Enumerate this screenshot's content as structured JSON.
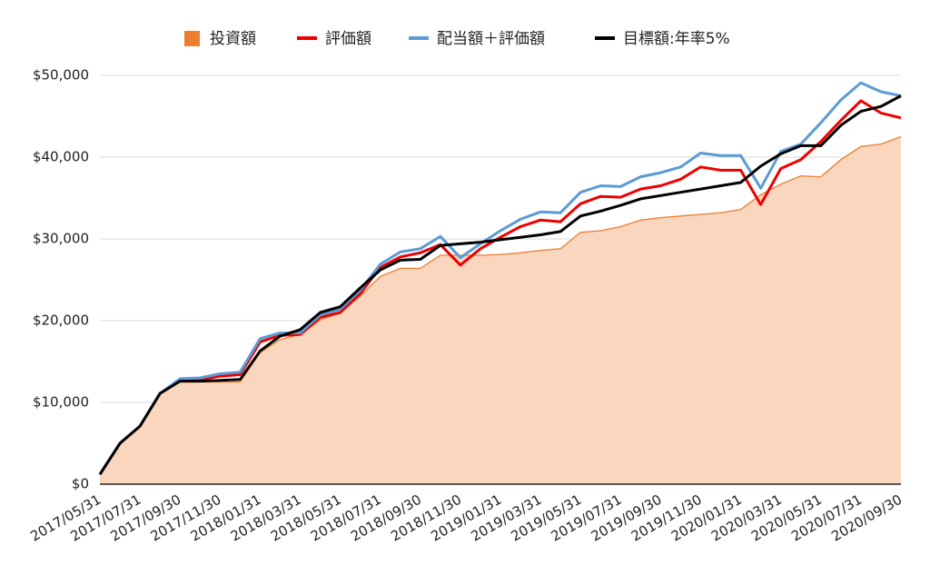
{
  "chart_data": {
    "type": "line",
    "categories": [
      "2017/05/31",
      null,
      "2017/07/31",
      null,
      "2017/09/30",
      null,
      "2017/11/30",
      null,
      "2018/01/31",
      null,
      "2018/03/31",
      null,
      "2018/05/31",
      null,
      "2018/07/31",
      null,
      "2018/09/30",
      null,
      "2018/11/30",
      null,
      "2019/01/31",
      null,
      "2019/03/31",
      null,
      "2019/05/31",
      null,
      "2019/07/31",
      null,
      "2019/09/30",
      null,
      "2019/11/30",
      null,
      "2020/01/31",
      null,
      "2020/03/31",
      null,
      "2020/05/31",
      null,
      "2020/07/31",
      null,
      "2020/09/30"
    ],
    "series": [
      {
        "name": "投資額",
        "color": "#ed7d31",
        "fill": "#f9d6bd",
        "area": true,
        "values": [
          1200,
          5000,
          7100,
          11100,
          12500,
          12500,
          12500,
          12500,
          16100,
          17700,
          18300,
          20100,
          21000,
          23000,
          25400,
          26400,
          26400,
          28000,
          28000,
          28000,
          28100,
          28300,
          28600,
          28800,
          30800,
          31000,
          31500,
          32300,
          32600,
          32800,
          33000,
          33200,
          33600,
          35400,
          36700,
          37700,
          37600,
          39700,
          41300,
          41600,
          42500
        ]
      },
      {
        "name": "評価額",
        "color": "#ee0000",
        "values": [
          1200,
          5000,
          7100,
          11100,
          12700,
          12800,
          13200,
          13400,
          17400,
          18200,
          18300,
          20400,
          21000,
          23300,
          26500,
          27800,
          28300,
          29300,
          26800,
          28800,
          30200,
          31500,
          32300,
          32100,
          34300,
          35200,
          35100,
          36100,
          36500,
          37300,
          38800,
          38400,
          38400,
          34200,
          38600,
          39700,
          41900,
          44500,
          46900,
          45400,
          44800
        ]
      },
      {
        "name": "配当額＋評価額",
        "color": "#5b9bd5",
        "values": [
          1200,
          5000,
          7100,
          11100,
          12900,
          13000,
          13500,
          13700,
          17800,
          18500,
          18500,
          20700,
          21400,
          23700,
          26900,
          28400,
          28800,
          30300,
          27700,
          29400,
          31000,
          32400,
          33300,
          33200,
          35700,
          36500,
          36400,
          37600,
          38100,
          38800,
          40500,
          40200,
          40200,
          36200,
          40700,
          41600,
          44200,
          47000,
          49100,
          48000,
          47500
        ]
      },
      {
        "name": "目標額:年率5%",
        "color": "#000000",
        "values": [
          1200,
          5000,
          7100,
          11100,
          12600,
          12600,
          12700,
          12800,
          16300,
          18100,
          18900,
          21000,
          21700,
          24000,
          26200,
          27400,
          27500,
          29200,
          29400,
          29600,
          29900,
          30200,
          30500,
          30900,
          32800,
          33400,
          34100,
          34900,
          35300,
          35700,
          36100,
          36500,
          36900,
          38900,
          40400,
          41400,
          41400,
          43900,
          45600,
          46200,
          47500
        ]
      }
    ],
    "ylim": [
      0,
      50000
    ],
    "yticks": [
      {
        "value": 0,
        "label": "$0"
      },
      {
        "value": 10000,
        "label": "$10,000"
      },
      {
        "value": 20000,
        "label": "$20,000"
      },
      {
        "value": 30000,
        "label": "$30,000"
      },
      {
        "value": 40000,
        "label": "$40,000"
      },
      {
        "value": 50000,
        "label": "$50,000"
      }
    ],
    "grid": true,
    "legend": "top"
  }
}
